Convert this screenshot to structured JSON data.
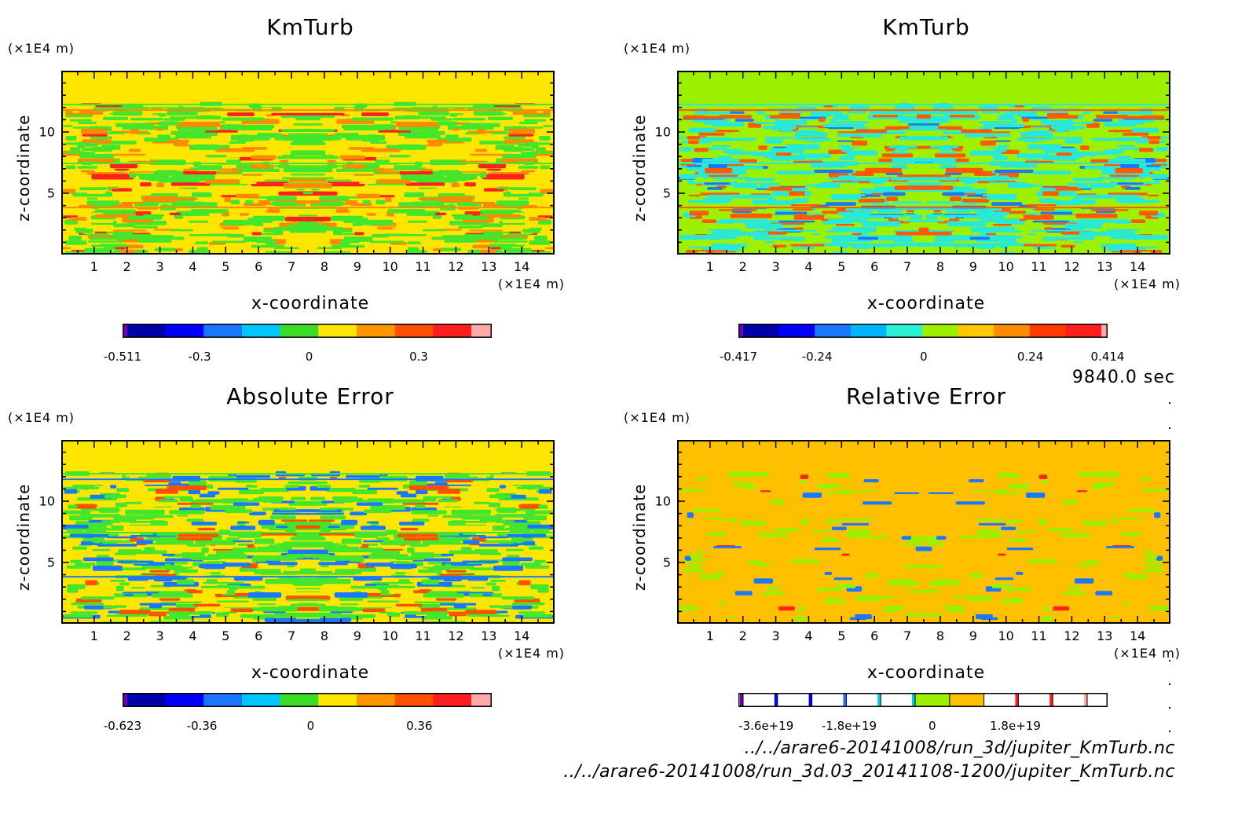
{
  "time_label": "9840.0 sec",
  "file_paths": [
    "../../arare6-20141008/run_3d/jupiter_KmTurb.nc",
    "../../arare6-20141008/run_3d.03_20141108-1200/jupiter_KmTurb.nc"
  ],
  "chart_data": [
    {
      "type": "heatmap",
      "title": "KmTurb",
      "xlabel": "x-coordinate",
      "ylabel": "z-coordinate",
      "x_unit": "(×1E4 m)",
      "y_unit": "(×1E4 m)",
      "xlim": [
        0,
        15
      ],
      "ylim": [
        0,
        15
      ],
      "x_ticks": [
        "1",
        "2",
        "3",
        "4",
        "5",
        "6",
        "7",
        "8",
        "9",
        "10",
        "11",
        "12",
        "13",
        "14"
      ],
      "y_ticks": [
        "5",
        "10"
      ],
      "background_color": "#ffe600",
      "pattern_colors": [
        "#44e62c",
        "#ff8a00",
        "#ff2020",
        "#ffe600"
      ],
      "colorbar": {
        "colors": [
          "#7000b0",
          "#0000a8",
          "#0000ff",
          "#1a78ff",
          "#00c8ff",
          "#3cdc28",
          "#ffe600",
          "#ff9600",
          "#ff5000",
          "#ff1e1e",
          "#ffa8a8"
        ],
        "labels": [
          "-0.511",
          "-0.3",
          "0",
          "0.3"
        ],
        "label_values": [
          -0.511,
          -0.3,
          0,
          0.3
        ],
        "range": [
          -0.511,
          0.5
        ]
      }
    },
    {
      "type": "heatmap",
      "title": "KmTurb",
      "xlabel": "x-coordinate",
      "ylabel": "z-coordinate",
      "x_unit": "(×1E4 m)",
      "y_unit": "(×1E4 m)",
      "xlim": [
        0,
        15
      ],
      "ylim": [
        0,
        15
      ],
      "x_ticks": [
        "1",
        "2",
        "3",
        "4",
        "5",
        "6",
        "7",
        "8",
        "9",
        "10",
        "11",
        "12",
        "13",
        "14"
      ],
      "y_ticks": [
        "5",
        "10"
      ],
      "background_color": "#9cf000",
      "pattern_colors": [
        "#28e8d8",
        "#ff5a00",
        "#1a78ff",
        "#9cf000"
      ],
      "colorbar": {
        "colors": [
          "#7000b0",
          "#0000a8",
          "#0000ff",
          "#1a78ff",
          "#00b4ff",
          "#28f0d0",
          "#9cf000",
          "#ffc800",
          "#ff8c00",
          "#ff3c00",
          "#ff1e1e",
          "#ffa8a8"
        ],
        "labels": [
          "-0.417",
          "-0.24",
          "0",
          "0.24",
          "0.414"
        ],
        "label_values": [
          -0.417,
          -0.24,
          0,
          0.24,
          0.414
        ],
        "range": [
          -0.417,
          0.414
        ]
      }
    },
    {
      "type": "heatmap",
      "title": "Absolute Error",
      "xlabel": "x-coordinate",
      "ylabel": "z-coordinate",
      "x_unit": "(×1E4 m)",
      "y_unit": "(×1E4 m)",
      "xlim": [
        0,
        15
      ],
      "ylim": [
        0,
        15
      ],
      "x_ticks": [
        "1",
        "2",
        "3",
        "4",
        "5",
        "6",
        "7",
        "8",
        "9",
        "10",
        "11",
        "12",
        "13",
        "14"
      ],
      "y_ticks": [
        "5",
        "10"
      ],
      "background_color": "#ffe600",
      "pattern_colors": [
        "#44e62c",
        "#1a78ff",
        "#ff5000",
        "#ffe600"
      ],
      "colorbar": {
        "colors": [
          "#7000b0",
          "#0000a8",
          "#0000ff",
          "#1a78ff",
          "#00c8ff",
          "#3cdc28",
          "#ffe600",
          "#ff9600",
          "#ff5000",
          "#ff1e1e",
          "#ffa8a8"
        ],
        "labels": [
          "-0.623",
          "-0.36",
          "0",
          "0.36"
        ],
        "label_values": [
          -0.623,
          -0.36,
          0,
          0.36
        ],
        "range": [
          -0.623,
          0.6
        ]
      }
    },
    {
      "type": "heatmap",
      "title": "Relative Error",
      "xlabel": "x-coordinate",
      "ylabel": "z-coordinate",
      "x_unit": "(×1E4 m)",
      "y_unit": "(×1E4 m)",
      "xlim": [
        0,
        15
      ],
      "ylim": [
        0,
        15
      ],
      "x_ticks": [
        "1",
        "2",
        "3",
        "4",
        "5",
        "6",
        "7",
        "8",
        "9",
        "10",
        "11",
        "12",
        "13",
        "14"
      ],
      "y_ticks": [
        "5",
        "10"
      ],
      "background_color": "#ffc000",
      "pattern_colors": [
        "#9cf000",
        "#1a78ff",
        "#ff2020"
      ],
      "colorbar": {
        "colors": [
          "#ffffff",
          "#ffffff",
          "#ffffff",
          "#ffffff",
          "#ffffff",
          "#ffffff",
          "#9cf000",
          "#ffc000",
          "#ffffff",
          "#ffffff",
          "#ffffff",
          "#ffffff"
        ],
        "stripes": [
          "#7000b0",
          "#0000ff",
          "#0000ff",
          "#1a78ff",
          "#00c8ff",
          "#00c8ff",
          "",
          "",
          "#ff1e1e",
          "#ff1e1e",
          "#ffa8a8",
          ""
        ],
        "labels": [
          "-3.6e+19",
          "-1.8e+19",
          "0",
          "1.8e+19"
        ],
        "label_values": [
          -3.6e+19,
          -1.8e+19,
          0,
          1.8e+19
        ],
        "range": [
          -4.2e+19,
          3.8e+19
        ]
      }
    }
  ]
}
